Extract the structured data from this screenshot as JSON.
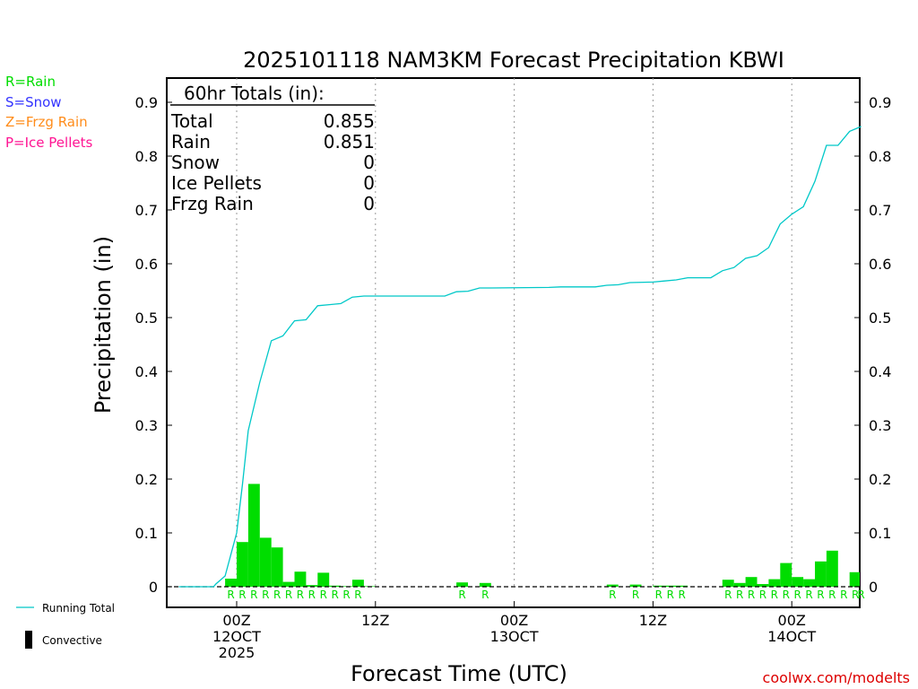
{
  "chart_data": {
    "type": "bar",
    "title": "2025101118 NAM3KM Forecast Precipitation KBWI",
    "xlabel": "Forecast Time (UTC)",
    "ylabel": "Precipitation (in)",
    "ylim": [
      0,
      0.92
    ],
    "y_ticks": [
      0,
      0.1,
      0.2,
      0.3,
      0.4,
      0.5,
      0.6,
      0.7,
      0.8,
      0.9
    ],
    "y_tick_labels": [
      "0",
      "0.1",
      "0.2",
      "0.3",
      "0.4",
      "0.5",
      "0.6",
      "0.7",
      "0.8",
      "0.9"
    ],
    "x_range_hours": [
      -6,
      54
    ],
    "x_ticks": [
      {
        "hour": 0,
        "lines": [
          "00Z",
          "12OCT",
          "2025"
        ]
      },
      {
        "hour": 12,
        "lines": [
          "12Z"
        ]
      },
      {
        "hour": 24,
        "lines": [
          "00Z",
          "13OCT"
        ]
      },
      {
        "hour": 36,
        "lines": [
          "12Z"
        ]
      },
      {
        "hour": 48,
        "lines": [
          "00Z",
          "14OCT"
        ]
      }
    ],
    "gridlines": "vertical dotted at 00Z and 12Z",
    "hourly_precip": [
      {
        "hour": -0.5,
        "value": 0.015
      },
      {
        "hour": 0.5,
        "value": 0.083
      },
      {
        "hour": 1.5,
        "value": 0.191
      },
      {
        "hour": 2.5,
        "value": 0.091
      },
      {
        "hour": 3.5,
        "value": 0.073
      },
      {
        "hour": 4.5,
        "value": 0.009
      },
      {
        "hour": 5.5,
        "value": 0.028
      },
      {
        "hour": 6.5,
        "value": 0.003
      },
      {
        "hour": 7.5,
        "value": 0.026
      },
      {
        "hour": 8.5,
        "value": 0.002
      },
      {
        "hour": 9.5,
        "value": 0.001
      },
      {
        "hour": 10.5,
        "value": 0.013
      },
      {
        "hour": 11.5,
        "value": 0.001
      },
      {
        "hour": 19.5,
        "value": 0.008
      },
      {
        "hour": 21.5,
        "value": 0.007
      },
      {
        "hour": 32.5,
        "value": 0.004
      },
      {
        "hour": 34.5,
        "value": 0.004
      },
      {
        "hour": 36.5,
        "value": 0.002
      },
      {
        "hour": 37.5,
        "value": 0.002
      },
      {
        "hour": 38.5,
        "value": 0.002
      },
      {
        "hour": 42.5,
        "value": 0.013
      },
      {
        "hour": 43.5,
        "value": 0.007
      },
      {
        "hour": 44.5,
        "value": 0.018
      },
      {
        "hour": 45.5,
        "value": 0.005
      },
      {
        "hour": 46.5,
        "value": 0.014
      },
      {
        "hour": 47.5,
        "value": 0.044
      },
      {
        "hour": 48.5,
        "value": 0.018
      },
      {
        "hour": 49.5,
        "value": 0.014
      },
      {
        "hour": 50.5,
        "value": 0.047
      },
      {
        "hour": 51.5,
        "value": 0.067
      },
      {
        "hour": 53.5,
        "value": 0.027
      },
      {
        "hour": 54.0,
        "value": 0.01
      }
    ],
    "rain_markers_hours": [
      -0.5,
      0.5,
      1.5,
      2.5,
      3.5,
      4.5,
      5.5,
      6.5,
      7.5,
      8.5,
      9.5,
      10.5,
      19.5,
      21.5,
      32.5,
      34.5,
      36.5,
      37.5,
      38.5,
      42.5,
      43.5,
      44.5,
      45.5,
      46.5,
      47.5,
      48.5,
      49.5,
      50.5,
      51.5,
      52.5,
      53.5,
      54.0
    ],
    "running_total": [
      [
        -5,
        0
      ],
      [
        -2,
        0
      ],
      [
        -1.8,
        0.005
      ],
      [
        -1,
        0.02
      ],
      [
        0,
        0.1
      ],
      [
        0.5,
        0.19
      ],
      [
        1,
        0.29
      ],
      [
        2,
        0.38
      ],
      [
        3,
        0.457
      ],
      [
        4,
        0.466
      ],
      [
        5,
        0.494
      ],
      [
        6,
        0.496
      ],
      [
        7,
        0.522
      ],
      [
        8,
        0.524
      ],
      [
        9,
        0.526
      ],
      [
        10,
        0.538
      ],
      [
        11,
        0.54
      ],
      [
        12,
        0.54
      ],
      [
        18,
        0.54
      ],
      [
        19,
        0.548
      ],
      [
        20,
        0.549
      ],
      [
        21,
        0.555
      ],
      [
        22,
        0.555
      ],
      [
        27,
        0.556
      ],
      [
        28,
        0.557
      ],
      [
        31,
        0.557
      ],
      [
        32,
        0.56
      ],
      [
        33,
        0.561
      ],
      [
        34,
        0.565
      ],
      [
        36,
        0.566
      ],
      [
        37,
        0.568
      ],
      [
        38,
        0.57
      ],
      [
        39,
        0.574
      ],
      [
        41,
        0.574
      ],
      [
        42,
        0.587
      ],
      [
        43,
        0.593
      ],
      [
        44,
        0.61
      ],
      [
        45,
        0.615
      ],
      [
        46,
        0.63
      ],
      [
        47,
        0.674
      ],
      [
        48,
        0.692
      ],
      [
        49,
        0.706
      ],
      [
        50,
        0.753
      ],
      [
        51,
        0.82
      ],
      [
        52,
        0.82
      ],
      [
        53,
        0.846
      ],
      [
        54,
        0.855
      ]
    ],
    "series": [
      {
        "name": "Running Total",
        "type": "line",
        "color": "#00c8c8"
      },
      {
        "name": "Convective",
        "type": "bar",
        "color": "#000000"
      }
    ],
    "colors": {
      "precip_bars": "#00dd00",
      "running_total": "#00c8c8"
    }
  },
  "totals_box": {
    "header": "60hr Totals (in):",
    "rows": [
      {
        "label": "Total",
        "value": "0.855"
      },
      {
        "label": "Rain",
        "value": "0.851"
      },
      {
        "label": "Snow",
        "value": "0"
      },
      {
        "label": "Ice Pellets",
        "value": "0"
      },
      {
        "label": "Frzg Rain",
        "value": "0"
      }
    ]
  },
  "ptype_legend": [
    {
      "text": "R=Rain",
      "color": "#00dd00"
    },
    {
      "text": "S=Snow",
      "color": "#3333ff"
    },
    {
      "text": "Z=Frzg Rain",
      "color": "#ff8c1a"
    },
    {
      "text": "P=Ice Pellets",
      "color": "#ff1493"
    }
  ],
  "rain_marker_text": "R",
  "bottom_legend": {
    "running_total": "Running Total",
    "convective": "Convective"
  },
  "credit": "coolwx.com/modelts"
}
